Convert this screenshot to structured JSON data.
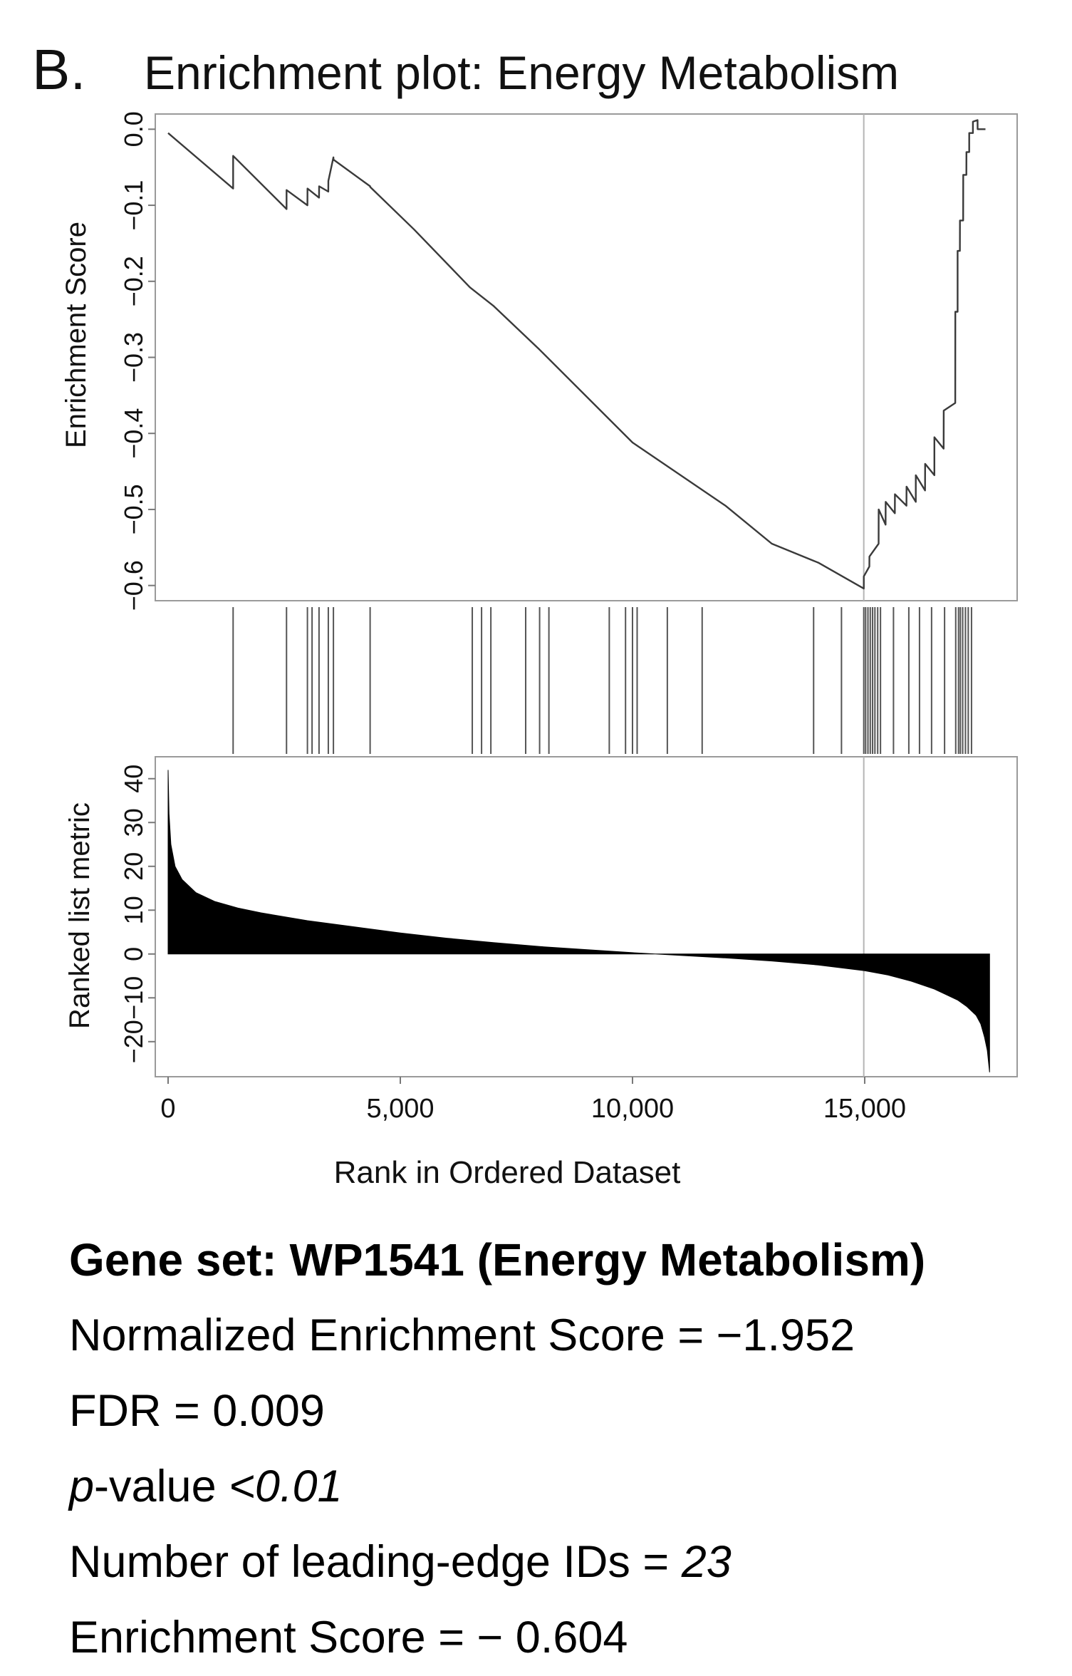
{
  "panel_label": "B.",
  "info": {
    "gene_set": "Gene set: WP1541 (Energy Metabolism)",
    "nes": "Normalized Enrichment Score = −1.952",
    "fdr": "FDR = 0.009",
    "p_prefix": "p",
    "p_mid": "-value ",
    "p_value": "<0.01",
    "leading_prefix": "Number of leading-edge IDs = ",
    "leading_value": "23",
    "es": "Enrichment Score = − 0.604"
  },
  "chart_data": {
    "type": "line",
    "title": "Enrichment plot: Energy Metabolism",
    "xlabel": "Rank in Ordered Dataset",
    "xlim": [
      0,
      17700
    ],
    "x_ticks": [
      0,
      5000,
      10000,
      15000
    ],
    "x_tick_labels": [
      "0",
      "5,000",
      "10,000",
      "15,000"
    ],
    "marker_rank": 14980,
    "enrichment": {
      "ylabel": "Enrichment Score",
      "ylim": [
        -0.62,
        0.02
      ],
      "y_ticks": [
        -0.6,
        -0.5,
        -0.4,
        -0.3,
        -0.2,
        -0.1,
        0.0
      ],
      "y_tick_labels": [
        "−0.6",
        "−0.5",
        "−0.4",
        "−0.3",
        "−0.2",
        "−0.1",
        "0.0"
      ],
      "x": [
        0,
        1400,
        1401,
        2550,
        2551,
        3000,
        3001,
        3250,
        3251,
        3450,
        3451,
        3560,
        3561,
        4350,
        4351,
        5300,
        6500,
        7000,
        8000,
        10000,
        12000,
        13000,
        14000,
        14980,
        14981,
        15100,
        15101,
        15300,
        15301,
        15450,
        15451,
        15650,
        15651,
        15900,
        15901,
        16100,
        16101,
        16300,
        16301,
        16500,
        16501,
        16700,
        16701,
        16950,
        16951,
        17000,
        17001,
        17050,
        17051,
        17120,
        17121,
        17190,
        17191,
        17250,
        17251,
        17330,
        17331,
        17430,
        17431,
        17600
      ],
      "y": [
        -0.005,
        -0.078,
        -0.035,
        -0.105,
        -0.08,
        -0.1,
        -0.078,
        -0.09,
        -0.075,
        -0.082,
        -0.068,
        -0.037,
        -0.04,
        -0.075,
        -0.076,
        -0.132,
        -0.208,
        -0.232,
        -0.29,
        -0.412,
        -0.495,
        -0.545,
        -0.57,
        -0.604,
        -0.588,
        -0.575,
        -0.562,
        -0.545,
        -0.5,
        -0.52,
        -0.49,
        -0.505,
        -0.48,
        -0.495,
        -0.47,
        -0.49,
        -0.455,
        -0.475,
        -0.44,
        -0.455,
        -0.405,
        -0.42,
        -0.37,
        -0.36,
        -0.24,
        -0.24,
        -0.16,
        -0.16,
        -0.12,
        -0.12,
        -0.06,
        -0.06,
        -0.03,
        -0.03,
        -0.005,
        -0.005,
        0.01,
        0.012,
        0.0,
        0.0
      ]
    },
    "hits": [
      1400,
      2550,
      3000,
      3100,
      3250,
      3450,
      3560,
      4350,
      6550,
      6750,
      6950,
      7700,
      8000,
      8200,
      9500,
      9850,
      10000,
      10100,
      10750,
      11500,
      13900,
      14500,
      14980,
      15020,
      15070,
      15120,
      15170,
      15220,
      15280,
      15340,
      15620,
      15950,
      16180,
      16440,
      16720,
      16960,
      17020,
      17060,
      17110,
      17170,
      17230,
      17300
    ],
    "ranked": {
      "ylabel": "Ranked list metric",
      "ylim": [
        -28,
        45
      ],
      "y_ticks": [
        -20,
        -10,
        0,
        10,
        20,
        30,
        40
      ],
      "y_tick_labels": [
        "−20",
        "−10",
        "0",
        "10",
        "20",
        "30",
        "40"
      ],
      "x": [
        0,
        20,
        60,
        150,
        300,
        600,
        1000,
        1500,
        2000,
        3000,
        4000,
        5000,
        6000,
        7000,
        8000,
        9000,
        10000,
        11000,
        12000,
        13000,
        14000,
        15000,
        15500,
        16000,
        16500,
        17000,
        17200,
        17400,
        17500,
        17580,
        17640,
        17690
      ],
      "y": [
        42,
        32,
        25,
        20,
        17,
        14,
        12,
        10.5,
        9.4,
        7.6,
        6.2,
        4.8,
        3.6,
        2.6,
        1.7,
        1,
        0.3,
        -0.3,
        -0.9,
        -1.6,
        -2.5,
        -3.8,
        -4.8,
        -6.2,
        -8.0,
        -10.5,
        -12,
        -14,
        -16,
        -19,
        -22,
        -27
      ]
    }
  }
}
